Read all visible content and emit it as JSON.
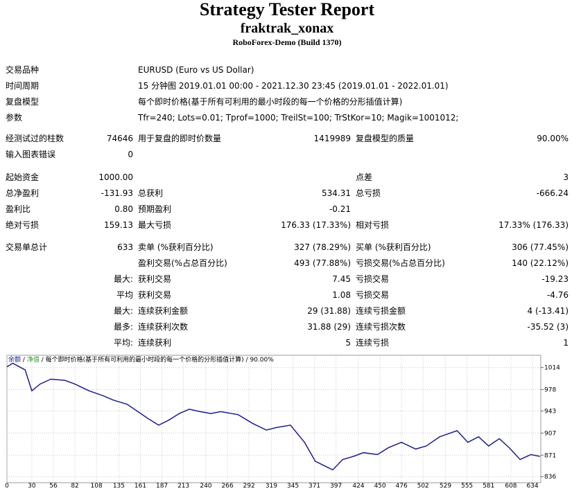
{
  "header": {
    "title": "Strategy Tester Report",
    "name": "fraktrak_xonax",
    "server": "RoboForex-Demo (Build 1370)"
  },
  "info": [
    [
      "交易品种",
      "EURUSD (Euro vs US Dollar)"
    ],
    [
      "时间周期",
      "15 分钟图 2019.01.01 00:00 - 2021.12.30 23:45 (2019.01.01 - 2022.01.01)"
    ],
    [
      "复盘模型",
      "每个即时价格(基于所有可利用的最小时段的每一个价格的分形插值计算)"
    ],
    [
      "参数",
      "Tfr=240; Lots=0.01; Tprof=1000; TreilSt=100; TrStKor=10; Magik=1001012;"
    ]
  ],
  "groups": [
    [
      [
        "经测试过的柱数",
        "74646",
        "用于复盘的即时价数量",
        "1419989",
        "复盘模型的质量",
        "90.00%"
      ],
      [
        "输入图表错误",
        "0",
        null,
        null,
        null,
        null
      ]
    ],
    [
      [
        "起始资金",
        "1000.00",
        null,
        null,
        "点差",
        "3"
      ],
      [
        "总净盈利",
        "-131.93",
        "总获利",
        "534.31",
        "总亏损",
        "-666.24"
      ],
      [
        "盈利比",
        "0.80",
        "预期盈利",
        "-0.21",
        null,
        null
      ],
      [
        "绝对亏损",
        "159.13",
        "最大亏损",
        "176.33 (17.33%)",
        "相对亏损",
        "17.33% (176.33)"
      ]
    ],
    [
      [
        "交易单总计",
        "633",
        "卖单 (%获利百分比)",
        "327 (78.29%)",
        "买单 (%获利百分比)",
        "306 (77.45%)"
      ],
      [
        null,
        null,
        "盈利交易(%占总百分比)",
        "493 (77.88%)",
        "亏损交易(%占总百分比)",
        "140 (22.12%)"
      ],
      [
        null,
        "最大:",
        "获利交易",
        "7.45",
        "亏损交易",
        "-19.23"
      ],
      [
        null,
        "平均",
        "获利交易",
        "1.08",
        "亏损交易",
        "-4.76"
      ],
      [
        null,
        "最大:",
        "连续获利金额",
        "29 (31.88)",
        "连续亏损金额",
        "4 (-13.41)"
      ],
      [
        null,
        "最多:",
        "连续获利次数",
        "31.88 (29)",
        "连续亏损次数",
        "-35.52 (3)"
      ],
      [
        null,
        "平均:",
        "连续获利",
        "5",
        "连续亏损",
        "1"
      ]
    ]
  ],
  "chart_data": {
    "type": "line",
    "caption": {
      "equity": "净值",
      "separator": "/",
      "model": "每个即时价格(基于所有可利用的最小时段的每一个价格的分形插值计算)",
      "quality": "90.00%"
    },
    "x": [
      0,
      7,
      22,
      30,
      40,
      53,
      70,
      82,
      99,
      116,
      128,
      145,
      158,
      170,
      183,
      195,
      208,
      220,
      233,
      246,
      258,
      279,
      296,
      313,
      325,
      342,
      359,
      372,
      384,
      393,
      405,
      418,
      430,
      447,
      460,
      476,
      493,
      506,
      522,
      543,
      556,
      569,
      581,
      594,
      606,
      619,
      632,
      643
    ],
    "series": [
      {
        "name": "余额",
        "color": "#1c1c8a",
        "values": [
          1015,
          1021,
          1010,
          976,
          987,
          995,
          993,
          987,
          976,
          968,
          961,
          954,
          942,
          931,
          920,
          928,
          939,
          946,
          942,
          939,
          942,
          937,
          923,
          912,
          916,
          920,
          892,
          861,
          853,
          847,
          864,
          869,
          875,
          872,
          883,
          892,
          881,
          886,
          901,
          911,
          892,
          901,
          886,
          898,
          883,
          864,
          872,
          869
        ]
      }
    ],
    "xlim": [
      0,
      644
    ],
    "ylim": [
      834,
      1034
    ],
    "xticks": [
      0,
      30,
      56,
      82,
      108,
      135,
      161,
      187,
      213,
      240,
      266,
      292,
      319,
      345,
      371,
      397,
      424,
      450,
      476,
      502,
      529,
      555,
      581,
      608,
      634
    ],
    "yticks": [
      1014,
      978,
      943,
      907,
      871,
      836
    ],
    "grid": true
  }
}
